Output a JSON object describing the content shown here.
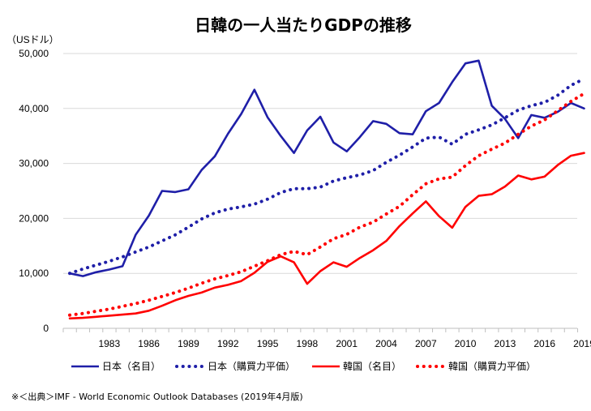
{
  "chart_data": {
    "type": "line",
    "title": "日韓の一人当たりGDPの推移",
    "ylabel": "（USドル）",
    "xlabel": "",
    "ylim": [
      0,
      50000
    ],
    "yticks": [
      0,
      10000,
      20000,
      30000,
      40000,
      50000
    ],
    "ytick_labels": [
      "0",
      "10,000",
      "20,000",
      "30,000",
      "40,000",
      "50,000"
    ],
    "xlim": [
      1980,
      2019
    ],
    "xticks": [
      1983,
      1986,
      1989,
      1992,
      1995,
      1998,
      2001,
      2004,
      2007,
      2010,
      2013,
      2016,
      2019
    ],
    "xtick_labels": [
      "1983",
      "1986",
      "1989",
      "1992",
      "1995",
      "1998",
      "2001",
      "2004",
      "2007",
      "2010",
      "2013",
      "2016",
      "2019"
    ],
    "grid": "horizontal",
    "legend": "bottom",
    "x": [
      1980,
      1981,
      1982,
      1983,
      1984,
      1985,
      1986,
      1987,
      1988,
      1989,
      1990,
      1991,
      1992,
      1993,
      1994,
      1995,
      1996,
      1997,
      1998,
      1999,
      2000,
      2001,
      2002,
      2003,
      2004,
      2005,
      2006,
      2007,
      2008,
      2009,
      2010,
      2011,
      2012,
      2013,
      2014,
      2015,
      2016,
      2017,
      2018,
      2019
    ],
    "series": [
      {
        "name": "日本（名目）",
        "color": "#1f1fa8",
        "style": "solid",
        "values": [
          10000,
          9500,
          10200,
          10700,
          11300,
          17000,
          20500,
          25000,
          24800,
          25300,
          28800,
          31300,
          35400,
          39000,
          43400,
          38400,
          35000,
          31900,
          36000,
          38500,
          33800,
          32200,
          34800,
          37700,
          37200,
          35500,
          35300,
          39500,
          41000,
          44800,
          48200,
          48700,
          40500,
          38100,
          34600,
          38800,
          38300,
          39400,
          41000,
          40000
        ]
      },
      {
        "name": "日本（購買力平価）",
        "color": "#1f1fa8",
        "style": "dotted",
        "values": [
          10000,
          10800,
          11500,
          12200,
          13000,
          13900,
          14800,
          15900,
          17000,
          18400,
          19900,
          21000,
          21700,
          22100,
          22600,
          23500,
          24700,
          25400,
          25400,
          25700,
          26800,
          27400,
          27900,
          28700,
          30200,
          31500,
          33000,
          34600,
          34800,
          33500,
          35300,
          36100,
          37000,
          38300,
          39700,
          40500,
          41100,
          42400,
          44200,
          45400
        ]
      },
      {
        "name": "韓国（名目）",
        "color": "#ff0000",
        "style": "solid",
        "values": [
          1800,
          1900,
          2100,
          2300,
          2500,
          2700,
          3200,
          4100,
          5100,
          5900,
          6500,
          7400,
          7900,
          8600,
          10100,
          12100,
          13100,
          12000,
          8100,
          10400,
          12000,
          11200,
          12800,
          14200,
          15900,
          18600,
          20900,
          23100,
          20400,
          18300,
          22100,
          24100,
          24400,
          25800,
          27800,
          27100,
          27600,
          29700,
          31400,
          31900
        ]
      },
      {
        "name": "韓国（購買力平価）",
        "color": "#ff0000",
        "style": "dotted",
        "values": [
          2400,
          2700,
          3100,
          3500,
          4000,
          4500,
          5100,
          5800,
          6500,
          7300,
          8200,
          9000,
          9600,
          10300,
          11300,
          12300,
          13400,
          14000,
          13400,
          14800,
          16300,
          17100,
          18400,
          19300,
          20800,
          22200,
          24300,
          26300,
          27200,
          27500,
          29600,
          31400,
          32600,
          33700,
          35300,
          36800,
          37900,
          39600,
          41300,
          42700
        ]
      }
    ]
  },
  "source_note": "※＜出典＞IMF - World Economic Outlook Databases (2019年4月版)"
}
